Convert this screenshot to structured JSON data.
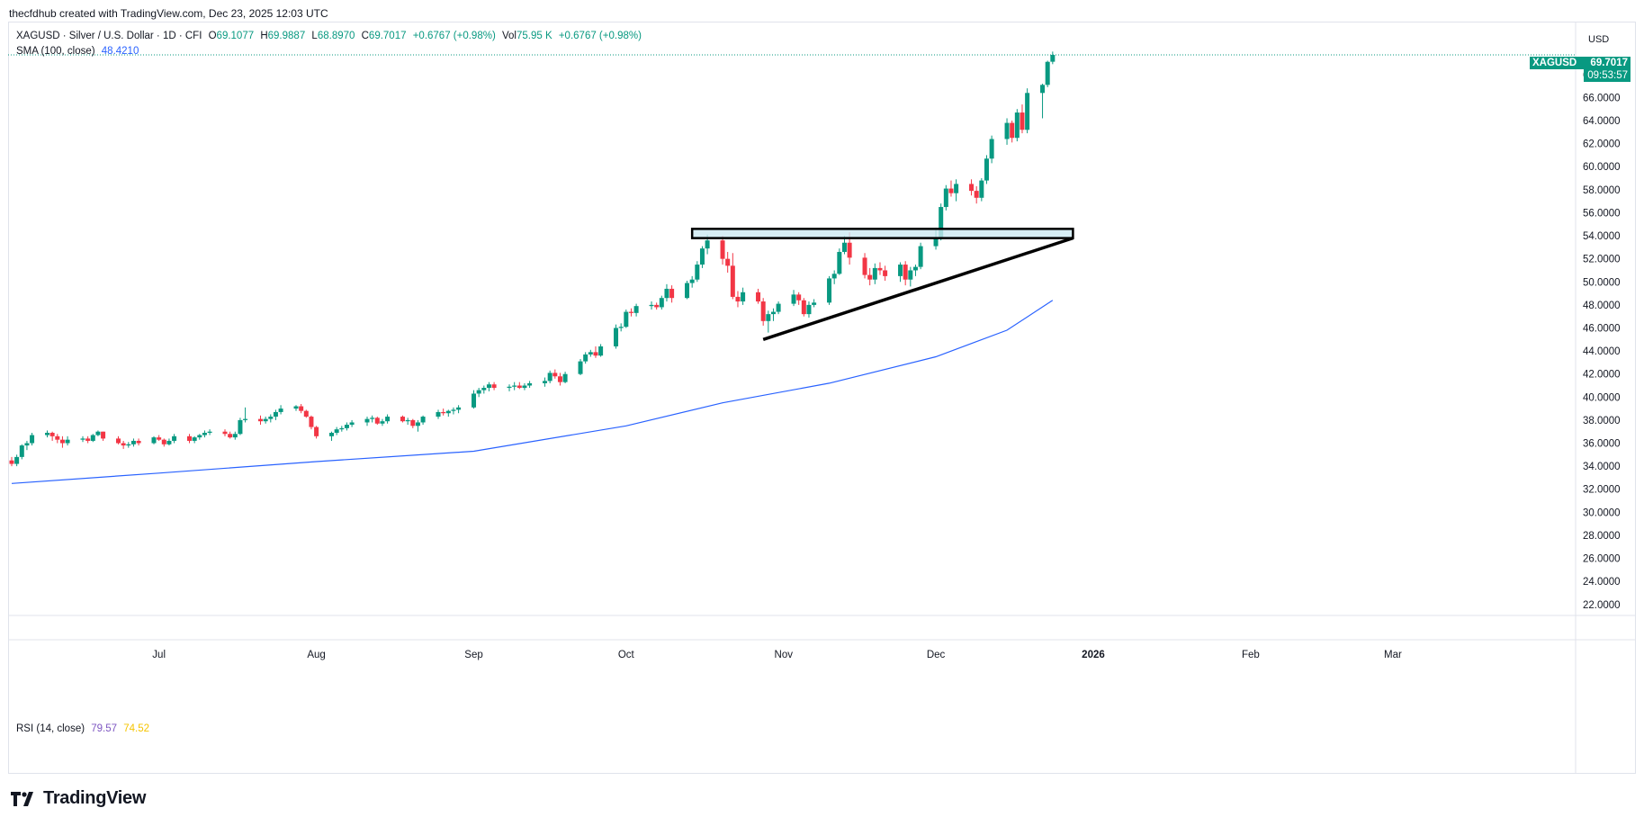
{
  "header": {
    "credit": "thecfdhub created with TradingView.com, Dec 23, 2025 12:03 UTC"
  },
  "legend": {
    "symbol": "XAGUSD · Silver / U.S. Dollar · 1D · CFI",
    "open_label": "O",
    "open": "69.1077",
    "high_label": "H",
    "high": "69.9887",
    "low_label": "L",
    "low": "68.8970",
    "close_label": "C",
    "close": "69.7017",
    "change": "+0.6767 (+0.98%)",
    "vol_label": "Vol",
    "vol": "75.95 K",
    "vol_change": "+0.6767 (+0.98%)",
    "sma_label": "SMA (100, close)",
    "sma_value": "48.4210",
    "rsi_label": "RSI (14, close)",
    "rsi_value": "79.57",
    "rsi_ma_value": "74.52"
  },
  "price_scale": {
    "currency": "USD",
    "last_symbol": "XAGUSD",
    "last_price": "69.7017",
    "countdown": "09:53:57"
  },
  "branding": {
    "logo_text": "TradingView"
  },
  "colors": {
    "up": "#089981",
    "down": "#f23645",
    "sma": "#2962ff",
    "zone_fill": "#cce9f1",
    "rsi_value": "#7e57c2",
    "rsi_ma": "#f5c400"
  },
  "icons": {
    "logo": "tradingview-logo-icon"
  },
  "chart_data": {
    "type": "candlestick",
    "symbol": "XAGUSD",
    "timeframe": "1D",
    "x_tick_labels": [
      "Jul",
      "Aug",
      "Sep",
      "Oct",
      "Nov",
      "Dec",
      "2026",
      "Feb",
      "Mar"
    ],
    "x_ticks": [
      "2025-07-01",
      "2025-08-01",
      "2025-09-01",
      "2025-10-01",
      "2025-11-01",
      "2025-12-01",
      "2026-01-01",
      "2026-02-01",
      "2026-03-01"
    ],
    "x_range": [
      "2025-06-02",
      "2026-03-26"
    ],
    "y_ticks": [
      22,
      24,
      26,
      28,
      30,
      32,
      34,
      36,
      38,
      40,
      42,
      44,
      46,
      48,
      50,
      52,
      54,
      56,
      58,
      60,
      62,
      64,
      66,
      68
    ],
    "ylim": [
      21.2,
      71.5
    ],
    "grid": false,
    "candles": [
      [
        "2025-06-02",
        34.5,
        34.8,
        34.0,
        34.2
      ],
      [
        "2025-06-03",
        34.2,
        35.0,
        34.0,
        34.8
      ],
      [
        "2025-06-04",
        34.8,
        35.9,
        34.6,
        35.8
      ],
      [
        "2025-06-05",
        35.8,
        36.2,
        35.4,
        36.0
      ],
      [
        "2025-06-06",
        36.0,
        36.9,
        35.8,
        36.7
      ],
      [
        "2025-06-09",
        36.7,
        37.1,
        36.5,
        36.9
      ],
      [
        "2025-06-10",
        36.9,
        37.0,
        36.2,
        36.6
      ],
      [
        "2025-06-11",
        36.6,
        36.8,
        36.0,
        36.3
      ],
      [
        "2025-06-12",
        36.3,
        36.6,
        35.6,
        36.0
      ],
      [
        "2025-06-13",
        36.0,
        36.6,
        35.8,
        36.3
      ],
      [
        "2025-06-16",
        36.3,
        36.6,
        36.1,
        36.4
      ],
      [
        "2025-06-17",
        36.4,
        36.6,
        36.0,
        36.2
      ],
      [
        "2025-06-18",
        36.2,
        36.8,
        36.1,
        36.7
      ],
      [
        "2025-06-19",
        36.7,
        37.1,
        36.6,
        37.0
      ],
      [
        "2025-06-20",
        37.0,
        37.0,
        36.2,
        36.4
      ],
      [
        "2025-06-23",
        36.4,
        36.6,
        35.9,
        36.0
      ],
      [
        "2025-06-24",
        36.0,
        36.2,
        35.5,
        35.8
      ],
      [
        "2025-06-25",
        35.8,
        36.1,
        35.6,
        35.9
      ],
      [
        "2025-06-26",
        35.9,
        36.4,
        35.7,
        36.2
      ],
      [
        "2025-06-27",
        36.2,
        36.4,
        35.8,
        36.0
      ],
      [
        "2025-06-30",
        36.0,
        36.6,
        35.9,
        36.5
      ],
      [
        "2025-07-01",
        36.5,
        36.7,
        36.2,
        36.3
      ],
      [
        "2025-07-02",
        36.3,
        36.4,
        35.7,
        35.9
      ],
      [
        "2025-07-03",
        35.9,
        36.4,
        35.8,
        36.2
      ],
      [
        "2025-07-04",
        36.2,
        36.8,
        36.0,
        36.6
      ],
      [
        "2025-07-07",
        36.6,
        36.8,
        36.0,
        36.2
      ],
      [
        "2025-07-08",
        36.2,
        36.6,
        36.0,
        36.5
      ],
      [
        "2025-07-09",
        36.5,
        36.8,
        36.3,
        36.7
      ],
      [
        "2025-07-10",
        36.7,
        37.1,
        36.5,
        36.9
      ],
      [
        "2025-07-11",
        36.9,
        37.2,
        36.7,
        37.0
      ],
      [
        "2025-07-14",
        37.0,
        37.2,
        36.6,
        36.8
      ],
      [
        "2025-07-15",
        36.8,
        37.0,
        36.4,
        36.5
      ],
      [
        "2025-07-16",
        36.5,
        37.0,
        36.3,
        36.8
      ],
      [
        "2025-07-17",
        36.8,
        38.2,
        36.7,
        38.0
      ],
      [
        "2025-07-18",
        38.0,
        39.1,
        37.8,
        38.1
      ],
      [
        "2025-07-21",
        38.1,
        38.4,
        37.6,
        37.9
      ],
      [
        "2025-07-22",
        37.9,
        38.3,
        37.7,
        38.1
      ],
      [
        "2025-07-23",
        38.1,
        38.5,
        37.8,
        38.3
      ],
      [
        "2025-07-24",
        38.3,
        38.9,
        38.0,
        38.7
      ],
      [
        "2025-07-25",
        38.7,
        39.3,
        38.5,
        39.0
      ],
      [
        "2025-07-28",
        39.0,
        39.3,
        38.8,
        39.2
      ],
      [
        "2025-07-29",
        39.2,
        39.4,
        38.6,
        38.8
      ],
      [
        "2025-07-30",
        38.8,
        38.9,
        38.2,
        38.3
      ],
      [
        "2025-07-31",
        38.3,
        38.4,
        37.2,
        37.4
      ],
      [
        "2025-08-01",
        37.4,
        37.5,
        36.4,
        36.6
      ],
      [
        "2025-08-04",
        36.6,
        37.0,
        36.2,
        36.9
      ],
      [
        "2025-08-05",
        36.9,
        37.4,
        36.7,
        37.2
      ],
      [
        "2025-08-06",
        37.2,
        37.5,
        37.0,
        37.3
      ],
      [
        "2025-08-07",
        37.3,
        37.8,
        37.1,
        37.6
      ],
      [
        "2025-08-08",
        37.6,
        38.0,
        37.4,
        37.8
      ],
      [
        "2025-08-11",
        37.8,
        38.3,
        37.5,
        38.1
      ],
      [
        "2025-08-12",
        38.1,
        38.4,
        37.8,
        38.2
      ],
      [
        "2025-08-13",
        38.2,
        38.3,
        37.6,
        37.7
      ],
      [
        "2025-08-14",
        37.7,
        38.1,
        37.5,
        37.9
      ],
      [
        "2025-08-15",
        37.9,
        38.5,
        37.7,
        38.3
      ],
      [
        "2025-08-18",
        38.3,
        38.4,
        37.8,
        37.9
      ],
      [
        "2025-08-19",
        37.9,
        38.2,
        37.6,
        38.0
      ],
      [
        "2025-08-20",
        38.0,
        38.1,
        37.3,
        37.5
      ],
      [
        "2025-08-21",
        37.5,
        38.0,
        37.0,
        37.8
      ],
      [
        "2025-08-22",
        37.8,
        38.4,
        37.6,
        38.3
      ],
      [
        "2025-08-25",
        38.3,
        38.9,
        38.1,
        38.7
      ],
      [
        "2025-08-26",
        38.7,
        39.0,
        38.4,
        38.6
      ],
      [
        "2025-08-27",
        38.6,
        38.9,
        38.3,
        38.8
      ],
      [
        "2025-08-28",
        38.8,
        39.1,
        38.5,
        38.9
      ],
      [
        "2025-08-29",
        38.9,
        39.3,
        38.6,
        39.1
      ],
      [
        "2025-09-01",
        39.1,
        40.6,
        39.0,
        40.3
      ],
      [
        "2025-09-02",
        40.3,
        40.8,
        40.0,
        40.6
      ],
      [
        "2025-09-03",
        40.6,
        41.0,
        40.3,
        40.8
      ],
      [
        "2025-09-04",
        40.8,
        41.3,
        40.5,
        41.1
      ],
      [
        "2025-09-05",
        41.1,
        41.3,
        40.6,
        40.8
      ],
      [
        "2025-09-08",
        40.8,
        41.1,
        40.5,
        40.9
      ],
      [
        "2025-09-09",
        40.9,
        41.3,
        40.6,
        41.0
      ],
      [
        "2025-09-10",
        41.0,
        41.3,
        40.7,
        40.8
      ],
      [
        "2025-09-11",
        40.8,
        41.2,
        40.6,
        41.0
      ],
      [
        "2025-09-12",
        41.0,
        41.4,
        40.8,
        41.2
      ],
      [
        "2025-09-15",
        41.2,
        41.7,
        40.9,
        41.4
      ],
      [
        "2025-09-16",
        41.4,
        42.3,
        41.2,
        42.1
      ],
      [
        "2025-09-17",
        42.1,
        42.4,
        41.6,
        41.8
      ],
      [
        "2025-09-18",
        41.8,
        42.1,
        41.0,
        41.3
      ],
      [
        "2025-09-19",
        41.3,
        42.2,
        41.2,
        42.0
      ],
      [
        "2025-09-22",
        42.0,
        43.3,
        41.9,
        43.1
      ],
      [
        "2025-09-23",
        43.1,
        43.9,
        42.9,
        43.7
      ],
      [
        "2025-09-24",
        43.7,
        44.1,
        43.5,
        43.9
      ],
      [
        "2025-09-25",
        43.9,
        44.4,
        43.4,
        43.6
      ],
      [
        "2025-09-26",
        43.6,
        44.6,
        43.5,
        44.4
      ],
      [
        "2025-09-29",
        44.4,
        46.3,
        44.2,
        46.0
      ],
      [
        "2025-09-30",
        46.0,
        46.4,
        45.7,
        46.1
      ],
      [
        "2025-10-01",
        46.1,
        47.6,
        46.0,
        47.4
      ],
      [
        "2025-10-02",
        47.4,
        47.7,
        47.0,
        47.3
      ],
      [
        "2025-10-03",
        47.3,
        48.1,
        47.0,
        47.9
      ],
      [
        "2025-10-06",
        47.9,
        48.3,
        47.6,
        48.0
      ],
      [
        "2025-10-07",
        48.0,
        48.2,
        47.6,
        47.8
      ],
      [
        "2025-10-08",
        47.8,
        48.8,
        47.6,
        48.6
      ],
      [
        "2025-10-09",
        48.6,
        49.8,
        48.3,
        49.4
      ],
      [
        "2025-10-10",
        49.4,
        49.7,
        48.2,
        48.6
      ],
      [
        "2025-10-13",
        48.6,
        50.1,
        48.5,
        49.9
      ],
      [
        "2025-10-14",
        49.9,
        50.5,
        49.5,
        50.2
      ],
      [
        "2025-10-15",
        50.2,
        51.8,
        50.0,
        51.5
      ],
      [
        "2025-10-16",
        51.5,
        53.1,
        51.2,
        52.9
      ],
      [
        "2025-10-17",
        52.9,
        54.1,
        52.4,
        53.6
      ],
      [
        "2025-10-20",
        53.6,
        54.0,
        51.5,
        52.0
      ],
      [
        "2025-10-21",
        52.0,
        52.6,
        50.8,
        51.4
      ],
      [
        "2025-10-22",
        51.4,
        52.5,
        48.5,
        48.7
      ],
      [
        "2025-10-23",
        48.7,
        49.2,
        47.8,
        48.3
      ],
      [
        "2025-10-24",
        48.3,
        49.5,
        48.0,
        49.1
      ],
      [
        "2025-10-27",
        49.1,
        49.4,
        48.1,
        48.3
      ],
      [
        "2025-10-28",
        48.3,
        48.6,
        46.2,
        46.6
      ],
      [
        "2025-10-29",
        46.6,
        47.5,
        45.6,
        47.2
      ],
      [
        "2025-10-30",
        47.2,
        47.7,
        46.6,
        47.4
      ],
      [
        "2025-10-31",
        47.4,
        48.3,
        47.2,
        48.1
      ],
      [
        "2025-11-03",
        48.1,
        49.3,
        47.9,
        48.9
      ],
      [
        "2025-11-04",
        48.9,
        49.1,
        48.0,
        48.4
      ],
      [
        "2025-11-05",
        48.4,
        48.6,
        47.0,
        47.2
      ],
      [
        "2025-11-06",
        47.2,
        48.3,
        46.9,
        48.0
      ],
      [
        "2025-11-07",
        48.0,
        48.5,
        47.8,
        48.2
      ],
      [
        "2025-11-10",
        48.2,
        50.5,
        48.0,
        50.3
      ],
      [
        "2025-11-11",
        50.3,
        51.0,
        49.8,
        50.7
      ],
      [
        "2025-11-12",
        50.7,
        52.9,
        50.6,
        52.6
      ],
      [
        "2025-11-13",
        52.6,
        54.0,
        52.4,
        53.4
      ],
      [
        "2025-11-14",
        53.4,
        54.3,
        51.5,
        52.1
      ],
      [
        "2025-11-17",
        52.1,
        52.5,
        50.3,
        50.6
      ],
      [
        "2025-11-18",
        50.6,
        51.2,
        49.7,
        50.2
      ],
      [
        "2025-11-19",
        50.2,
        51.6,
        49.8,
        51.2
      ],
      [
        "2025-11-20",
        51.2,
        51.7,
        50.6,
        51.0
      ],
      [
        "2025-11-21",
        51.0,
        51.4,
        50.1,
        50.5
      ],
      [
        "2025-11-24",
        50.5,
        51.7,
        50.0,
        51.5
      ],
      [
        "2025-11-25",
        51.5,
        51.8,
        49.7,
        50.2
      ],
      [
        "2025-11-26",
        50.2,
        51.3,
        49.6,
        51.0
      ],
      [
        "2025-11-27",
        51.0,
        51.5,
        50.5,
        51.3
      ],
      [
        "2025-11-28",
        51.3,
        53.4,
        51.1,
        53.1
      ],
      [
        "2025-12-01",
        53.1,
        54.7,
        52.8,
        53.8
      ],
      [
        "2025-12-02",
        53.8,
        56.8,
        53.6,
        56.5
      ],
      [
        "2025-12-03",
        56.5,
        58.4,
        56.2,
        58.1
      ],
      [
        "2025-12-04",
        58.1,
        58.8,
        57.4,
        57.7
      ],
      [
        "2025-12-05",
        57.7,
        58.9,
        57.0,
        58.5
      ],
      [
        "2025-12-08",
        58.5,
        58.9,
        57.5,
        57.9
      ],
      [
        "2025-12-09",
        57.9,
        58.3,
        56.8,
        57.3
      ],
      [
        "2025-12-10",
        57.3,
        59.0,
        57.0,
        58.8
      ],
      [
        "2025-12-11",
        58.8,
        61.0,
        58.5,
        60.7
      ],
      [
        "2025-12-12",
        60.7,
        62.7,
        60.3,
        62.4
      ],
      [
        "2025-12-15",
        62.4,
        64.2,
        61.9,
        63.8
      ],
      [
        "2025-12-16",
        63.8,
        64.0,
        62.1,
        62.5
      ],
      [
        "2025-12-17",
        62.5,
        65.0,
        62.2,
        64.7
      ],
      [
        "2025-12-18",
        64.7,
        65.4,
        62.9,
        63.2
      ],
      [
        "2025-12-19",
        63.2,
        66.8,
        62.9,
        66.4
      ],
      [
        "2025-12-22",
        66.4,
        67.2,
        64.2,
        67.1
      ],
      [
        "2025-12-23",
        67.1,
        69.2,
        66.9,
        69.1
      ],
      [
        "2025-12-24",
        69.1077,
        69.9887,
        68.897,
        69.7017
      ]
    ],
    "sma100": {
      "name": "SMA (100, close)",
      "points": [
        [
          "2025-06-02",
          32.5
        ],
        [
          "2025-07-01",
          33.4
        ],
        [
          "2025-08-01",
          34.4
        ],
        [
          "2025-09-01",
          35.3
        ],
        [
          "2025-10-01",
          37.5
        ],
        [
          "2025-10-20",
          39.5
        ],
        [
          "2025-11-10",
          41.2
        ],
        [
          "2025-12-01",
          43.5
        ],
        [
          "2025-12-15",
          45.8
        ],
        [
          "2025-12-24",
          48.4
        ]
      ]
    },
    "annotations": {
      "resistance_zone": {
        "start": "2025-10-14",
        "end": "2025-12-28",
        "top": 54.6,
        "bottom": 53.8
      },
      "rising_trendline": {
        "start": [
          "2025-10-28",
          45.0
        ],
        "end": [
          "2025-12-28",
          53.8
        ]
      }
    }
  }
}
